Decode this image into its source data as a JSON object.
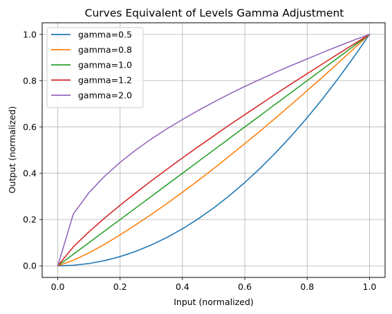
{
  "chart_data": {
    "type": "line",
    "title": "Curves Equivalent of Levels Gamma Adjustment",
    "xlabel": "Input (normalized)",
    "ylabel": "Output (normalized)",
    "xlim": [
      -0.05,
      1.05
    ],
    "ylim": [
      -0.05,
      1.05
    ],
    "xticks": [
      0.0,
      0.2,
      0.4,
      0.6,
      0.8,
      1.0
    ],
    "yticks": [
      0.0,
      0.2,
      0.4,
      0.6,
      0.8,
      1.0
    ],
    "xtick_labels": [
      "0.0",
      "0.2",
      "0.4",
      "0.6",
      "0.8",
      "1.0"
    ],
    "ytick_labels": [
      "0.0",
      "0.2",
      "0.4",
      "0.6",
      "0.8",
      "1.0"
    ],
    "grid": true,
    "legend_position": "upper-left",
    "x": [
      0.0,
      0.05,
      0.1,
      0.15,
      0.2,
      0.25,
      0.3,
      0.35,
      0.4,
      0.45,
      0.5,
      0.55,
      0.6,
      0.65,
      0.7,
      0.75,
      0.8,
      0.85,
      0.9,
      0.95,
      1.0
    ],
    "series": [
      {
        "name": "gamma=0.5",
        "color": "#1f77b4",
        "values": [
          0.0,
          0.0025,
          0.01,
          0.0225,
          0.04,
          0.0625,
          0.09,
          0.1225,
          0.16,
          0.2025,
          0.25,
          0.3025,
          0.36,
          0.4225,
          0.49,
          0.5625,
          0.64,
          0.7225,
          0.81,
          0.9025,
          1.0
        ]
      },
      {
        "name": "gamma=0.8",
        "color": "#ff7f0e",
        "values": [
          0.0,
          0.024,
          0.056,
          0.093,
          0.134,
          0.177,
          0.222,
          0.269,
          0.318,
          0.368,
          0.42,
          0.474,
          0.528,
          0.583,
          0.64,
          0.698,
          0.757,
          0.816,
          0.877,
          0.938,
          1.0
        ]
      },
      {
        "name": "gamma=1.0",
        "color": "#2ca02c",
        "values": [
          0.0,
          0.05,
          0.1,
          0.15,
          0.2,
          0.25,
          0.3,
          0.35,
          0.4,
          0.45,
          0.5,
          0.55,
          0.6,
          0.65,
          0.7,
          0.75,
          0.8,
          0.85,
          0.9,
          0.95,
          1.0
        ]
      },
      {
        "name": "gamma=1.2",
        "color": "#d62728",
        "values": [
          0.0,
          0.082,
          0.147,
          0.206,
          0.262,
          0.315,
          0.367,
          0.417,
          0.466,
          0.514,
          0.561,
          0.608,
          0.653,
          0.698,
          0.743,
          0.787,
          0.83,
          0.873,
          0.916,
          0.958,
          1.0
        ]
      },
      {
        "name": "gamma=2.0",
        "color": "#9467bd",
        "values": [
          0.0,
          0.224,
          0.316,
          0.387,
          0.447,
          0.5,
          0.548,
          0.592,
          0.632,
          0.671,
          0.707,
          0.742,
          0.775,
          0.806,
          0.837,
          0.866,
          0.894,
          0.922,
          0.949,
          0.975,
          1.0
        ]
      }
    ]
  }
}
